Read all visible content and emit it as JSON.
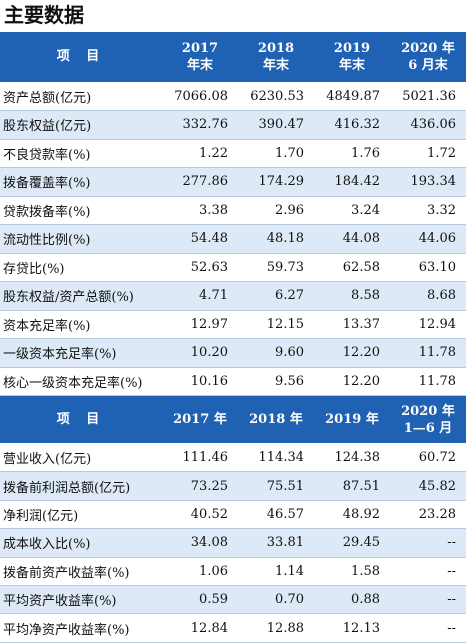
{
  "title": "主要数据",
  "table1": {
    "headers": [
      "项 目",
      "2017\n年末",
      "2018\n年末",
      "2019\n年末",
      "2020 年\n6 月末"
    ],
    "rows": [
      [
        "资产总额(亿元)",
        "7066.08",
        "6230.53",
        "4849.87",
        "5021.36"
      ],
      [
        "股东权益(亿元)",
        "332.76",
        "390.47",
        "416.32",
        "436.06"
      ],
      [
        "不良贷款率(%)",
        "1.22",
        "1.70",
        "1.76",
        "1.72"
      ],
      [
        "拨备覆盖率(%)",
        "277.86",
        "174.29",
        "184.42",
        "193.34"
      ],
      [
        "贷款拨备率(%)",
        "3.38",
        "2.96",
        "3.24",
        "3.32"
      ],
      [
        "流动性比例(%)",
        "54.48",
        "48.18",
        "44.08",
        "44.06"
      ],
      [
        "存贷比(%)",
        "52.63",
        "59.73",
        "62.58",
        "63.10"
      ],
      [
        "股东权益/资产总额(%)",
        "4.71",
        "6.27",
        "8.58",
        "8.68"
      ],
      [
        "资本充足率(%)",
        "12.97",
        "12.15",
        "13.37",
        "12.94"
      ],
      [
        "一级资本充足率(%)",
        "10.20",
        "9.60",
        "12.20",
        "11.78"
      ],
      [
        "核心一级资本充足率(%)",
        "10.16",
        "9.56",
        "12.20",
        "11.78"
      ]
    ]
  },
  "table2": {
    "headers": [
      "项 目",
      "2017 年",
      "2018 年",
      "2019 年",
      "2020 年\n1—6 月"
    ],
    "rows": [
      [
        "营业收入(亿元)",
        "111.46",
        "114.34",
        "124.38",
        "60.72"
      ],
      [
        "拨备前利润总额(亿元)",
        "73.25",
        "75.51",
        "87.51",
        "45.82"
      ],
      [
        "净利润(亿元)",
        "40.52",
        "46.57",
        "48.92",
        "23.28"
      ],
      [
        "成本收入比(%)",
        "34.08",
        "33.81",
        "29.45",
        "--"
      ],
      [
        "拨备前资产收益率(%)",
        "1.06",
        "1.14",
        "1.58",
        "--"
      ],
      [
        "平均资产收益率(%)",
        "0.59",
        "0.70",
        "0.88",
        "--"
      ],
      [
        "平均净资产收益率(%)",
        "12.84",
        "12.88",
        "12.13",
        "--"
      ]
    ]
  }
}
